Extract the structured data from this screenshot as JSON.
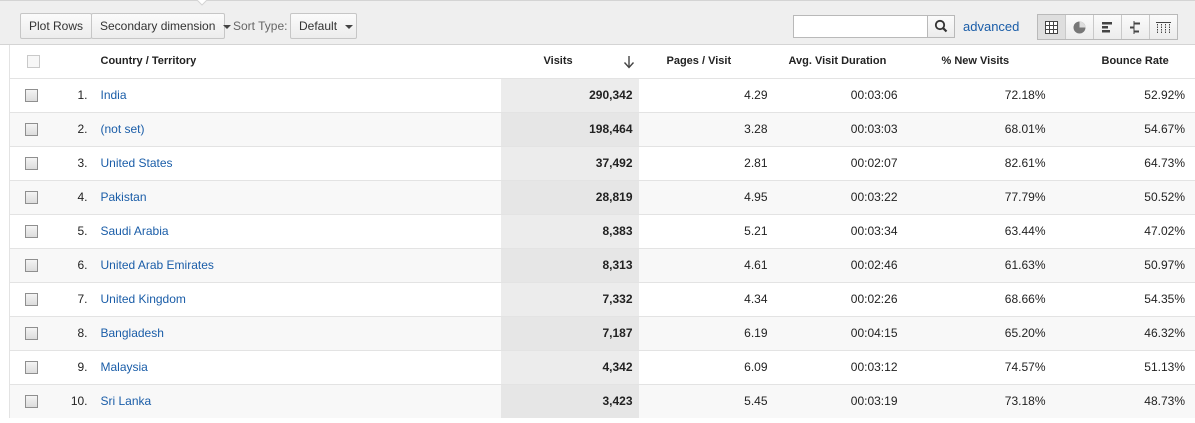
{
  "toolbar": {
    "plot_rows_label": "Plot Rows",
    "secondary_dimension_label": "Secondary dimension",
    "sort_type_label": "Sort Type:",
    "sort_type_value": "Default",
    "search_value": "",
    "advanced_label": "advanced",
    "view_icons": [
      "table-view-icon",
      "pie-view-icon",
      "bar-view-icon",
      "comparison-view-icon",
      "pivot-view-icon"
    ]
  },
  "table": {
    "headers": {
      "country": "Country / Territory",
      "visits": "Visits",
      "pages_per_visit": "Pages / Visit",
      "avg_duration": "Avg. Visit Duration",
      "new_visits": "% New Visits",
      "bounce_rate": "Bounce Rate"
    },
    "sort_column": "visits",
    "sort_direction": "descending",
    "rows": [
      {
        "index": "1.",
        "country": "India",
        "visits": "290,342",
        "pages": "4.29",
        "duration": "00:03:06",
        "new": "72.18%",
        "bounce": "52.92%"
      },
      {
        "index": "2.",
        "country": "(not set)",
        "visits": "198,464",
        "pages": "3.28",
        "duration": "00:03:03",
        "new": "68.01%",
        "bounce": "54.67%"
      },
      {
        "index": "3.",
        "country": "United States",
        "visits": "37,492",
        "pages": "2.81",
        "duration": "00:02:07",
        "new": "82.61%",
        "bounce": "64.73%"
      },
      {
        "index": "4.",
        "country": "Pakistan",
        "visits": "28,819",
        "pages": "4.95",
        "duration": "00:03:22",
        "new": "77.79%",
        "bounce": "50.52%"
      },
      {
        "index": "5.",
        "country": "Saudi Arabia",
        "visits": "8,383",
        "pages": "5.21",
        "duration": "00:03:34",
        "new": "63.44%",
        "bounce": "47.02%"
      },
      {
        "index": "6.",
        "country": "United Arab Emirates",
        "visits": "8,313",
        "pages": "4.61",
        "duration": "00:02:46",
        "new": "61.63%",
        "bounce": "50.97%"
      },
      {
        "index": "7.",
        "country": "United Kingdom",
        "visits": "7,332",
        "pages": "4.34",
        "duration": "00:02:26",
        "new": "68.66%",
        "bounce": "54.35%"
      },
      {
        "index": "8.",
        "country": "Bangladesh",
        "visits": "7,187",
        "pages": "6.19",
        "duration": "00:04:15",
        "new": "65.20%",
        "bounce": "46.32%"
      },
      {
        "index": "9.",
        "country": "Malaysia",
        "visits": "4,342",
        "pages": "6.09",
        "duration": "00:03:12",
        "new": "74.57%",
        "bounce": "51.13%"
      },
      {
        "index": "10.",
        "country": "Sri Lanka",
        "visits": "3,423",
        "pages": "5.45",
        "duration": "00:03:19",
        "new": "73.18%",
        "bounce": "48.73%"
      }
    ]
  },
  "colors": {
    "link": "#1a5da8",
    "toolbar_bg": "#efefef",
    "sorted_column_bg": "#ececec"
  }
}
